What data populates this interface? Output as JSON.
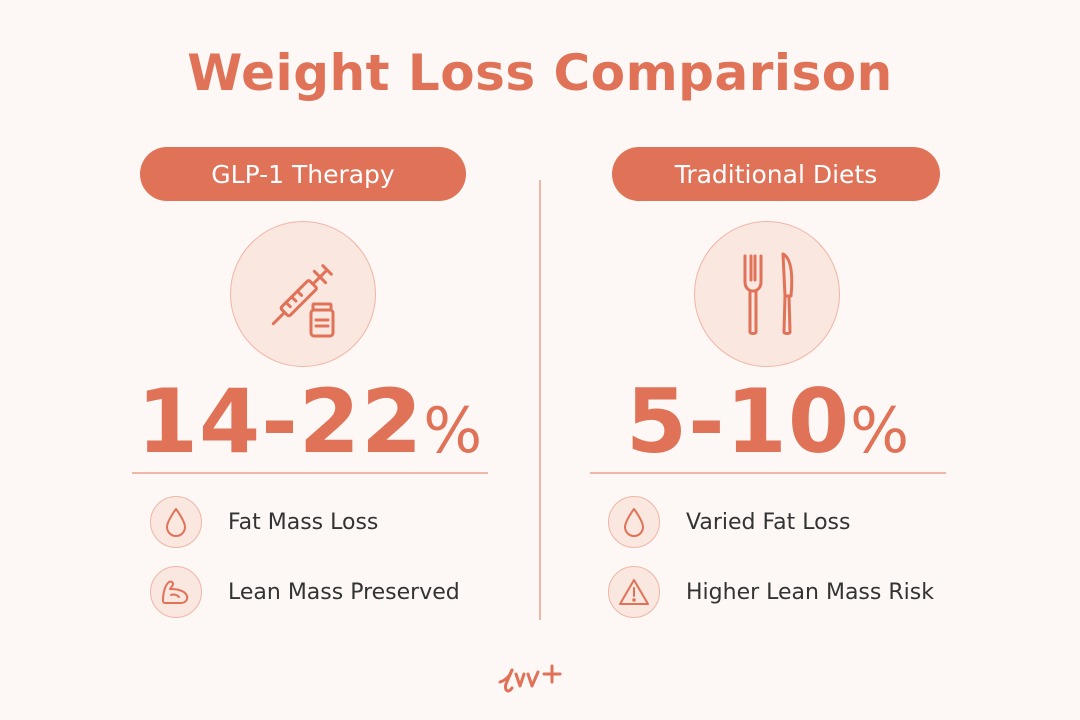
{
  "title": "Weight Loss Comparison",
  "colors": {
    "accent": "#e07258",
    "soft": "#fae7df",
    "line": "#efb7a8",
    "background": "#fdf8f5"
  },
  "left": {
    "heading": "GLP-1 Therapy",
    "icon": "syringe-vial-icon",
    "stat": "14-22",
    "stat_unit": "%",
    "features": [
      {
        "icon": "droplet-icon",
        "label": "Fat Mass Loss"
      },
      {
        "icon": "flexed-arm-icon",
        "label": "Lean Mass Preserved"
      }
    ]
  },
  "right": {
    "heading": "Traditional Diets",
    "icon": "fork-knife-icon",
    "stat": "5-10",
    "stat_unit": "%",
    "features": [
      {
        "icon": "droplet-icon",
        "label": "Varied Fat Loss"
      },
      {
        "icon": "warning-triangle-icon",
        "label": "Higher Lean Mass Risk"
      }
    ]
  },
  "logo_icon": "brand-logo-icon"
}
